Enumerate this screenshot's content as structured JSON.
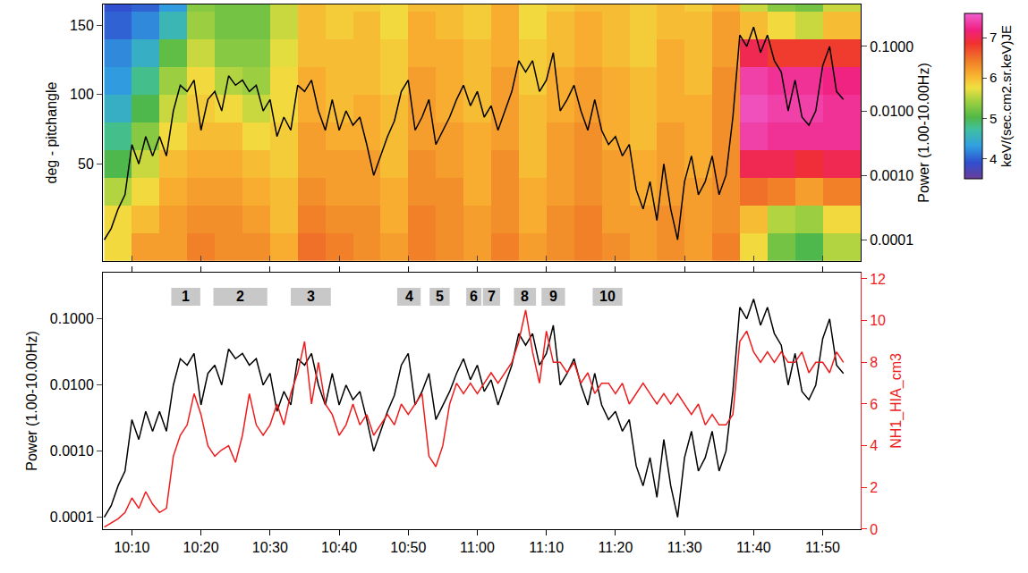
{
  "chart_data": [
    {
      "type": "heatmap",
      "ylabel": "deg - pitchangle",
      "y2label": "Power (1.00-10.00Hz)",
      "xlim": [
        605.8,
        715.5
      ],
      "xticks": [
        610,
        620,
        630,
        640,
        650,
        660,
        670,
        680,
        690,
        700,
        710
      ],
      "ylim": [
        -20,
        165
      ],
      "yticks": [
        50,
        100,
        150
      ],
      "y2lim": [
        4.68e-05,
        0.447
      ],
      "y2ticks": [
        0.0001,
        {
          "value": 0.001,
          "label": "0.0010"
        },
        {
          "value": 0.01,
          "label": "0.0100"
        },
        {
          "value": 0.1,
          "label": "0.1000"
        }
      ],
      "log": "y2",
      "grid": false,
      "tick_labels": "y",
      "heatmap": {
        "colorbar_title": "keV/(sec.cm2.sr.keV)JE",
        "zlim": [
          3.5,
          7.6
        ],
        "zticks": [
          4,
          5,
          6,
          7
        ],
        "x": [
          608,
          612,
          616,
          620,
          624,
          628,
          632,
          636,
          640,
          644,
          648,
          652,
          656,
          660,
          664,
          668,
          672,
          676,
          680,
          684,
          688,
          692,
          696,
          700,
          704,
          708,
          712,
          716
        ],
        "y": [
          -10,
          10,
          30,
          50,
          70,
          90,
          110,
          130,
          150,
          170
        ],
        "z_by_time": [
          [
            5.8,
            5.8,
            5.5,
            5.0,
            4.8,
            4.5,
            4.3,
            4.2,
            4.0,
            3.9
          ],
          [
            6.2,
            6.0,
            5.8,
            5.6,
            5.3,
            5.0,
            4.8,
            4.5,
            4.2,
            4.0
          ],
          [
            6.2,
            6.2,
            6.1,
            6.0,
            5.8,
            5.6,
            5.4,
            5.1,
            4.6,
            4.3
          ],
          [
            6.4,
            6.3,
            6.2,
            6.1,
            6.0,
            5.9,
            5.8,
            5.6,
            5.4,
            5.3
          ],
          [
            6.3,
            6.3,
            6.2,
            6.1,
            6.0,
            5.8,
            5.5,
            5.3,
            5.2,
            5.2
          ],
          [
            6.3,
            6.2,
            6.1,
            6.0,
            5.8,
            5.6,
            5.4,
            5.3,
            5.2,
            5.2
          ],
          [
            6.1,
            6.0,
            6.0,
            5.9,
            5.9,
            5.8,
            5.8,
            5.7,
            5.6,
            5.6
          ],
          [
            6.5,
            6.4,
            6.3,
            6.2,
            6.2,
            6.1,
            6.1,
            6.0,
            6.0,
            6.0
          ],
          [
            6.4,
            6.3,
            6.2,
            6.2,
            6.1,
            6.0,
            6.0,
            6.0,
            5.9,
            5.9
          ],
          [
            6.3,
            6.3,
            6.2,
            6.2,
            6.1,
            6.1,
            6.0,
            6.0,
            6.0,
            5.9
          ],
          [
            6.2,
            6.1,
            6.1,
            6.0,
            6.0,
            6.0,
            5.9,
            5.9,
            5.8,
            5.8
          ],
          [
            6.4,
            6.4,
            6.3,
            6.3,
            6.2,
            6.2,
            6.2,
            6.1,
            6.1,
            6.0
          ],
          [
            6.3,
            6.3,
            6.3,
            6.2,
            6.2,
            6.1,
            6.1,
            6.1,
            6.0,
            6.0
          ],
          [
            6.2,
            6.2,
            6.1,
            6.1,
            6.1,
            6.0,
            6.0,
            6.0,
            5.9,
            5.9
          ],
          [
            6.4,
            6.3,
            6.3,
            6.3,
            6.2,
            6.2,
            6.2,
            6.1,
            6.1,
            6.1
          ],
          [
            6.2,
            6.1,
            6.1,
            6.0,
            6.0,
            6.0,
            5.9,
            5.9,
            5.8,
            5.8
          ],
          [
            6.3,
            6.3,
            6.2,
            6.2,
            6.2,
            6.1,
            6.1,
            6.0,
            6.0,
            5.9
          ],
          [
            6.4,
            6.4,
            6.3,
            6.3,
            6.3,
            6.2,
            6.2,
            6.1,
            6.1,
            6.0
          ],
          [
            6.3,
            6.2,
            6.2,
            6.2,
            6.1,
            6.1,
            6.1,
            6.0,
            6.0,
            6.0
          ],
          [
            6.2,
            6.2,
            6.1,
            6.1,
            6.0,
            6.0,
            6.0,
            5.9,
            5.9,
            5.9
          ],
          [
            6.3,
            6.3,
            6.2,
            6.2,
            6.2,
            6.1,
            6.1,
            6.1,
            6.0,
            6.0
          ],
          [
            6.2,
            6.2,
            6.2,
            6.1,
            6.1,
            6.1,
            6.0,
            6.0,
            6.0,
            5.9
          ],
          [
            6.4,
            6.3,
            6.3,
            6.3,
            6.3,
            6.3,
            6.3,
            6.2,
            6.2,
            6.1
          ],
          [
            5.8,
            6.0,
            6.5,
            7.0,
            7.4,
            7.5,
            7.4,
            7.0,
            6.0,
            5.6
          ],
          [
            5.2,
            5.5,
            6.4,
            7.0,
            7.3,
            7.4,
            7.3,
            6.8,
            5.8,
            5.3
          ],
          [
            5.0,
            5.4,
            6.2,
            6.9,
            7.3,
            7.4,
            7.3,
            6.8,
            5.6,
            5.2
          ],
          [
            5.5,
            5.8,
            6.4,
            7.0,
            7.3,
            7.3,
            7.2,
            6.8,
            6.0,
            5.6
          ],
          [
            5.5,
            5.8,
            6.4,
            7.0,
            7.3,
            7.3,
            7.2,
            6.8,
            6.0,
            5.6
          ]
        ]
      },
      "x": [
        606,
        607,
        608,
        609,
        610,
        611,
        612,
        613,
        614,
        615,
        616,
        617,
        618,
        619,
        620,
        621,
        622,
        623,
        624,
        625,
        626,
        627,
        628,
        629,
        630,
        631,
        632,
        633,
        634,
        635,
        636,
        637,
        638,
        639,
        640,
        641,
        642,
        643,
        644,
        645,
        646,
        647,
        648,
        649,
        650,
        651,
        652,
        653,
        654,
        655,
        656,
        657,
        658,
        659,
        660,
        661,
        662,
        663,
        664,
        665,
        666,
        667,
        668,
        669,
        670,
        671,
        672,
        673,
        674,
        675,
        676,
        677,
        678,
        679,
        680,
        681,
        682,
        683,
        684,
        685,
        686,
        687,
        688,
        689,
        690,
        691,
        692,
        693,
        694,
        695,
        696,
        697,
        698,
        699,
        700,
        701,
        702,
        703,
        704,
        705,
        706,
        707,
        708,
        709,
        710,
        711,
        712,
        713
      ],
      "series": [
        {
          "color": "#000000",
          "axis": "y2",
          "values": [
            0.0001,
            0.00015,
            0.0003,
            0.0005,
            0.003,
            0.0015,
            0.004,
            0.002,
            0.004,
            0.002,
            0.01,
            0.025,
            0.02,
            0.03,
            0.005,
            0.015,
            0.02,
            0.01,
            0.035,
            0.025,
            0.03,
            0.02,
            0.025,
            0.01,
            0.015,
            0.004,
            0.008,
            0.005,
            0.025,
            0.02,
            0.03,
            0.01,
            0.005,
            0.015,
            0.005,
            0.01,
            0.006,
            0.008,
            0.003,
            0.001,
            0.002,
            0.004,
            0.007,
            0.02,
            0.03,
            0.005,
            0.008,
            0.015,
            0.003,
            0.005,
            0.008,
            0.015,
            0.025,
            0.012,
            0.02,
            0.008,
            0.012,
            0.005,
            0.01,
            0.02,
            0.06,
            0.04,
            0.06,
            0.02,
            0.03,
            0.08,
            0.01,
            0.015,
            0.025,
            0.01,
            0.005,
            0.015,
            0.005,
            0.003,
            0.004,
            0.002,
            0.003,
            0.0006,
            0.0003,
            0.0008,
            0.0002,
            0.0015,
            0.0003,
            0.0001,
            0.0008,
            0.002,
            0.0005,
            0.0008,
            0.002,
            0.0005,
            0.001,
            0.008,
            0.15,
            0.1,
            0.2,
            0.08,
            0.15,
            0.06,
            0.04,
            0.01,
            0.03,
            0.008,
            0.006,
            0.01,
            0.05,
            0.1,
            0.02,
            0.015
          ]
        }
      ]
    },
    {
      "type": "line",
      "ylabel": "Power (1.00-10.00Hz)",
      "y2label": "NH1_HIA_cm3",
      "xlim": [
        605.8,
        715.5
      ],
      "xticks": [
        {
          "value": 610,
          "label": "10:10"
        },
        {
          "value": 620,
          "label": "10:20"
        },
        {
          "value": 630,
          "label": "10:30"
        },
        {
          "value": 640,
          "label": "10:40"
        },
        {
          "value": 650,
          "label": "10:50"
        },
        {
          "value": 660,
          "label": "11:00"
        },
        {
          "value": 670,
          "label": "11:10"
        },
        {
          "value": 680,
          "label": "11:20"
        },
        {
          "value": 690,
          "label": "11:30"
        },
        {
          "value": 700,
          "label": "11:40"
        },
        {
          "value": 710,
          "label": "11:50"
        }
      ],
      "ylim": [
        6.61e-05,
        0.501
      ],
      "yticks": [
        0.0001,
        {
          "value": 0.001,
          "label": "0.0010"
        },
        {
          "value": 0.01,
          "label": "0.0100"
        },
        {
          "value": 0.1,
          "label": "0.1000"
        }
      ],
      "log": "y",
      "y2lim": [
        0,
        12.3
      ],
      "y2ticks": [
        0,
        2,
        4,
        6,
        8,
        10,
        12
      ],
      "grid": false,
      "x": [
        606,
        607,
        608,
        609,
        610,
        611,
        612,
        613,
        614,
        615,
        616,
        617,
        618,
        619,
        620,
        621,
        622,
        623,
        624,
        625,
        626,
        627,
        628,
        629,
        630,
        631,
        632,
        633,
        634,
        635,
        636,
        637,
        638,
        639,
        640,
        641,
        642,
        643,
        644,
        645,
        646,
        647,
        648,
        649,
        650,
        651,
        652,
        653,
        654,
        655,
        656,
        657,
        658,
        659,
        660,
        661,
        662,
        663,
        664,
        665,
        666,
        667,
        668,
        669,
        670,
        671,
        672,
        673,
        674,
        675,
        676,
        677,
        678,
        679,
        680,
        681,
        682,
        683,
        684,
        685,
        686,
        687,
        688,
        689,
        690,
        691,
        692,
        693,
        694,
        695,
        696,
        697,
        698,
        699,
        700,
        701,
        702,
        703,
        704,
        705,
        706,
        707,
        708,
        709,
        710,
        711,
        712,
        713
      ],
      "series": [
        {
          "color": "#000000",
          "values": [
            0.0001,
            0.00015,
            0.0003,
            0.0005,
            0.003,
            0.0015,
            0.004,
            0.002,
            0.004,
            0.002,
            0.01,
            0.025,
            0.02,
            0.03,
            0.005,
            0.015,
            0.02,
            0.01,
            0.035,
            0.025,
            0.03,
            0.02,
            0.025,
            0.01,
            0.015,
            0.004,
            0.008,
            0.005,
            0.025,
            0.02,
            0.03,
            0.01,
            0.005,
            0.015,
            0.005,
            0.01,
            0.006,
            0.008,
            0.003,
            0.001,
            0.002,
            0.004,
            0.007,
            0.02,
            0.03,
            0.005,
            0.008,
            0.015,
            0.003,
            0.005,
            0.008,
            0.015,
            0.025,
            0.012,
            0.02,
            0.008,
            0.012,
            0.005,
            0.01,
            0.02,
            0.06,
            0.04,
            0.06,
            0.02,
            0.03,
            0.08,
            0.01,
            0.015,
            0.025,
            0.01,
            0.005,
            0.015,
            0.005,
            0.003,
            0.004,
            0.002,
            0.003,
            0.0006,
            0.0003,
            0.0008,
            0.0002,
            0.0015,
            0.0003,
            0.0001,
            0.0008,
            0.002,
            0.0005,
            0.0008,
            0.002,
            0.0005,
            0.001,
            0.008,
            0.15,
            0.1,
            0.2,
            0.08,
            0.15,
            0.06,
            0.04,
            0.01,
            0.03,
            0.008,
            0.006,
            0.01,
            0.05,
            0.1,
            0.02,
            0.015
          ]
        },
        {
          "color": "#ee1c1c",
          "axis": "y2",
          "values": [
            0.1,
            0.3,
            0.5,
            0.8,
            1.5,
            1.0,
            1.8,
            1.2,
            0.8,
            1.0,
            3.5,
            4.5,
            5.0,
            6.5,
            5.5,
            4.0,
            3.5,
            3.8,
            4.0,
            3.2,
            4.5,
            6.5,
            5.0,
            4.5,
            5.0,
            6.0,
            5.0,
            6.5,
            7.5,
            9.0,
            6.0,
            8.0,
            6.0,
            5.5,
            4.5,
            5.0,
            6.0,
            5.0,
            5.5,
            4.5,
            5.0,
            5.5,
            5.0,
            6.0,
            5.5,
            6.0,
            6.5,
            3.5,
            3.0,
            4.0,
            6.0,
            7.0,
            6.5,
            7.0,
            6.5,
            7.0,
            7.5,
            7.0,
            7.5,
            8.0,
            9.0,
            10.5,
            8.5,
            7.0,
            9.5,
            8.0,
            8.0,
            7.5,
            8.0,
            7.0,
            7.5,
            6.5,
            7.0,
            7.0,
            6.5,
            7.0,
            6.0,
            6.5,
            7.0,
            6.5,
            6.0,
            6.5,
            6.0,
            6.5,
            6.0,
            5.5,
            6.0,
            5.0,
            5.5,
            5.0,
            5.0,
            5.5,
            9.0,
            9.5,
            8.5,
            8.0,
            8.5,
            8.0,
            8.5,
            8.0,
            8.0,
            8.5,
            7.5,
            8.0,
            8.0,
            7.5,
            8.5,
            8.0
          ]
        }
      ],
      "annotations": [
        {
          "text": "1",
          "start": 615.7,
          "end": 619.9
        },
        {
          "text": "2",
          "start": 621.8,
          "end": 629.6
        },
        {
          "text": "3",
          "start": 633.0,
          "end": 638.8
        },
        {
          "text": "4",
          "start": 648.4,
          "end": 651.8
        },
        {
          "text": "5",
          "start": 653.1,
          "end": 656.0
        },
        {
          "text": "6",
          "start": 658.4,
          "end": 660.6
        },
        {
          "text": "7",
          "start": 660.8,
          "end": 663.3
        },
        {
          "text": "8",
          "start": 665.3,
          "end": 668.5
        },
        {
          "text": "9",
          "start": 669.3,
          "end": 672.7
        },
        {
          "text": "10",
          "start": 676.7,
          "end": 681.0
        }
      ]
    }
  ]
}
